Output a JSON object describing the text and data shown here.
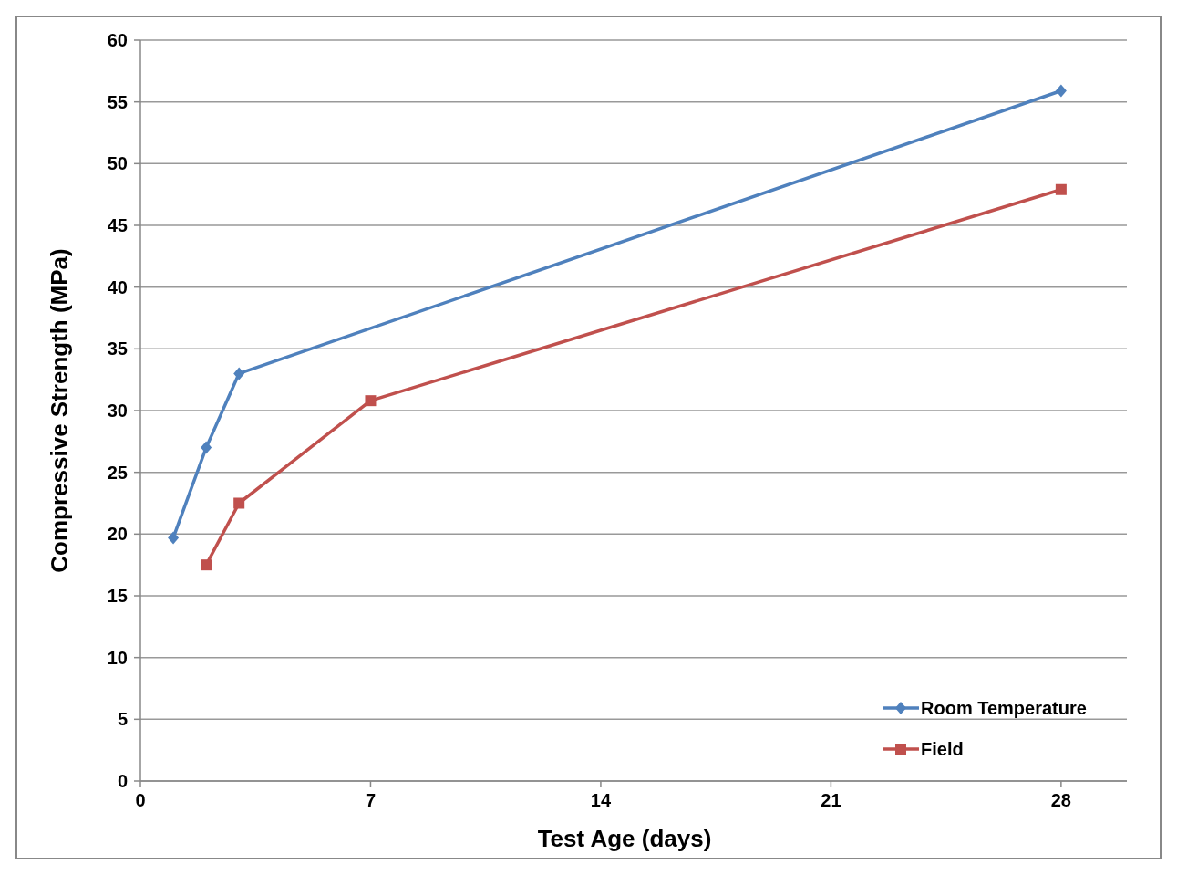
{
  "chart_data": {
    "type": "line",
    "xlabel": "Test Age (days)",
    "ylabel": "Compressive Strength (MPa)",
    "xlim": [
      0,
      30
    ],
    "xticks": [
      0,
      7,
      14,
      21,
      28
    ],
    "ylim": [
      0,
      60
    ],
    "yticks": [
      0,
      5,
      10,
      15,
      20,
      25,
      30,
      35,
      40,
      45,
      50,
      55,
      60
    ],
    "grid": "y",
    "legend": "bottom right",
    "line_style": "solid",
    "series": [
      {
        "name": "Room Temperature",
        "color": "#4f81bd",
        "marker": "diamond",
        "x": [
          1,
          2,
          3,
          28
        ],
        "values": [
          19.7,
          27.0,
          33.0,
          55.9
        ]
      },
      {
        "name": "Field",
        "color": "#c0504d",
        "marker": "square",
        "x": [
          2,
          3,
          7,
          28
        ],
        "values": [
          17.5,
          22.5,
          30.8,
          47.9
        ]
      }
    ]
  }
}
